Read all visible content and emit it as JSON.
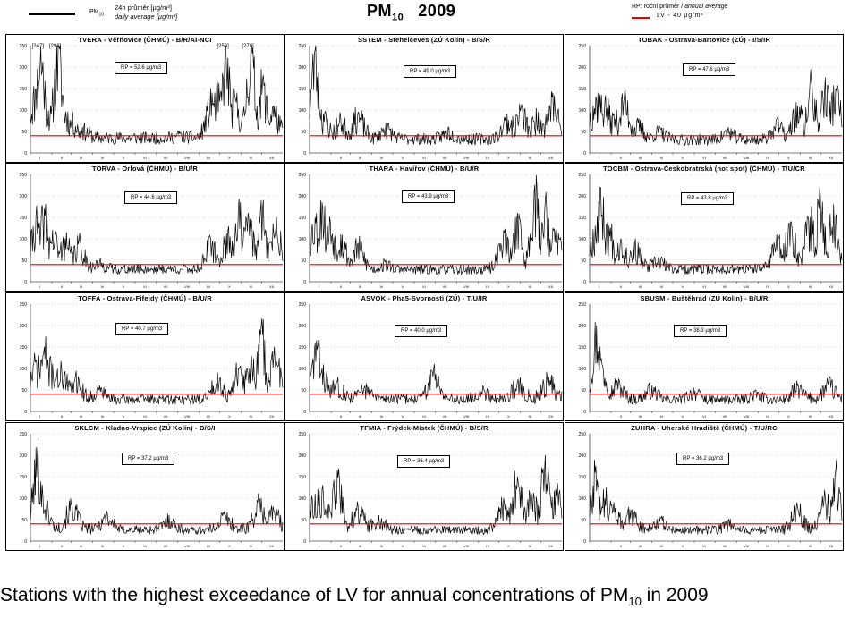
{
  "header": {
    "left_legend_symbol": "PM",
    "left_legend_symbol_sub": "10",
    "left_legend_line1": "24h průměr [µg/m³]",
    "left_legend_line2": "daily average [µg/m³]",
    "title_main": "PM",
    "title_sub": "10",
    "title_year": "2009",
    "right_legend_cs": "RP: roční průměr / ",
    "right_legend_en": "annual average",
    "right_legend_lv": "LV - 40 µg/m³"
  },
  "caption": {
    "text": "Stations with the highest exceedance of LV for annual concentrations of PM",
    "sub": "10",
    "tail": " in 2009"
  },
  "colors": {
    "series": "#000000",
    "limit": "#e00000",
    "grid": "#999999"
  },
  "chart_data": [
    {
      "type": "line",
      "title": "TVERA - Věřňovice (ČHMÚ) - B/R/AI-NCI",
      "annual_average_label": "RP = 52.6 µg/m3",
      "limit_value": 40,
      "ylim": [
        0,
        250
      ],
      "yticks": [
        0,
        50,
        100,
        150,
        200,
        250
      ],
      "x_tick_labels": [
        "I",
        "II",
        "III",
        "IV",
        "V",
        "VI",
        "VII",
        "VIII",
        "IX",
        "X",
        "XI",
        "XII"
      ],
      "annotations": [
        "[247]",
        "[298]",
        "[250]",
        "[270]"
      ],
      "annotation_days": [
        15,
        40,
        282,
        318
      ],
      "seed": 11,
      "peaks": [
        [
          8,
          150
        ],
        [
          15,
          247
        ],
        [
          22,
          120
        ],
        [
          30,
          90
        ],
        [
          40,
          250
        ],
        [
          48,
          110
        ],
        [
          60,
          80
        ],
        [
          75,
          60
        ],
        [
          150,
          45
        ],
        [
          215,
          50
        ],
        [
          262,
          140
        ],
        [
          270,
          160
        ],
        [
          282,
          250
        ],
        [
          295,
          130
        ],
        [
          318,
          250
        ],
        [
          335,
          170
        ],
        [
          350,
          110
        ]
      ],
      "base": 45
    },
    {
      "type": "line",
      "title": "SSTEM - Stehelčeves (ZÚ Kolín) - B/S/R",
      "annual_average_label": "RP = 49.0 µg/m3",
      "limit_value": 40,
      "ylim": [
        0,
        250
      ],
      "yticks": [
        0,
        50,
        100,
        150,
        200,
        250
      ],
      "x_tick_labels": [
        "I",
        "II",
        "III",
        "IV",
        "V",
        "VI",
        "VII",
        "VIII",
        "IX",
        "X",
        "XI",
        "XII"
      ],
      "seed": 23,
      "peaks": [
        [
          8,
          240
        ],
        [
          20,
          90
        ],
        [
          45,
          80
        ],
        [
          70,
          95
        ],
        [
          110,
          70
        ],
        [
          200,
          60
        ],
        [
          285,
          90
        ],
        [
          305,
          105
        ],
        [
          330,
          95
        ],
        [
          350,
          130
        ]
      ],
      "base": 42
    },
    {
      "type": "line",
      "title": "TOBAK - Ostrava-Bartovice (ZÚ) - I/S/IR",
      "annual_average_label": "RP = 47.6 µg/m3",
      "limit_value": 40,
      "ylim": [
        0,
        250
      ],
      "yticks": [
        0,
        50,
        100,
        150,
        200,
        250
      ],
      "x_tick_labels": [
        "I",
        "II",
        "III",
        "IV",
        "V",
        "VI",
        "VII",
        "VIII",
        "IX",
        "X",
        "XI",
        "XII"
      ],
      "seed": 37,
      "peaks": [
        [
          5,
          110
        ],
        [
          12,
          140
        ],
        [
          22,
          120
        ],
        [
          35,
          90
        ],
        [
          50,
          130
        ],
        [
          70,
          70
        ],
        [
          100,
          60
        ],
        [
          200,
          60
        ],
        [
          270,
          80
        ],
        [
          300,
          110
        ],
        [
          320,
          165
        ],
        [
          340,
          175
        ],
        [
          355,
          150
        ]
      ],
      "base": 40
    },
    {
      "type": "line",
      "title": "TORVA - Orlová (ČHMÚ) - B/U/R",
      "annual_average_label": "RP = 44.6 µg/m3",
      "limit_value": 40,
      "ylim": [
        0,
        250
      ],
      "yticks": [
        0,
        50,
        100,
        150,
        200,
        250
      ],
      "x_tick_labels": [
        "I",
        "II",
        "III",
        "IV",
        "V",
        "VI",
        "VII",
        "VIII",
        "IX",
        "X",
        "XI",
        "XII"
      ],
      "seed": 41,
      "peaks": [
        [
          8,
          155
        ],
        [
          20,
          170
        ],
        [
          32,
          120
        ],
        [
          50,
          100
        ],
        [
          70,
          95
        ],
        [
          100,
          50
        ],
        [
          260,
          100
        ],
        [
          285,
          120
        ],
        [
          300,
          170
        ],
        [
          315,
          150
        ],
        [
          335,
          170
        ],
        [
          355,
          150
        ]
      ],
      "base": 38
    },
    {
      "type": "line",
      "title": "THARA - Havířov (ČHMÚ) - B/U/R",
      "annual_average_label": "RP = 43.9 µg/m3",
      "limit_value": 40,
      "ylim": [
        0,
        250
      ],
      "yticks": [
        0,
        50,
        100,
        150,
        200,
        250
      ],
      "x_tick_labels": [
        "I",
        "II",
        "III",
        "IV",
        "V",
        "VI",
        "VII",
        "VIII",
        "IX",
        "X",
        "XI",
        "XII"
      ],
      "seed": 53,
      "peaks": [
        [
          8,
          150
        ],
        [
          18,
          185
        ],
        [
          30,
          140
        ],
        [
          45,
          110
        ],
        [
          70,
          90
        ],
        [
          110,
          50
        ],
        [
          280,
          120
        ],
        [
          300,
          160
        ],
        [
          325,
          225
        ],
        [
          340,
          190
        ],
        [
          355,
          120
        ]
      ],
      "base": 36
    },
    {
      "type": "line",
      "title": "TOCBM - Ostrava-Českobratrská (hot spot) (ČHMÚ) - T/U/CR",
      "annual_average_label": "RP = 43.8 µg/m3",
      "limit_value": 40,
      "ylim": [
        0,
        250
      ],
      "yticks": [
        0,
        50,
        100,
        150,
        200,
        250
      ],
      "x_tick_labels": [
        "I",
        "II",
        "III",
        "IV",
        "V",
        "VI",
        "VII",
        "VIII",
        "IX",
        "X",
        "XI",
        "XII"
      ],
      "seed": 67,
      "peaks": [
        [
          8,
          130
        ],
        [
          16,
          220
        ],
        [
          28,
          130
        ],
        [
          45,
          100
        ],
        [
          65,
          85
        ],
        [
          100,
          60
        ],
        [
          270,
          110
        ],
        [
          290,
          140
        ],
        [
          318,
          150
        ],
        [
          333,
          200
        ],
        [
          352,
          180
        ]
      ],
      "base": 38
    },
    {
      "type": "line",
      "title": "TOFFA - Ostrava-Fifejdy (ČHMÚ) - B/U/R",
      "annual_average_label": "RP = 40.7 µg/m3",
      "limit_value": 40,
      "ylim": [
        0,
        250
      ],
      "yticks": [
        0,
        50,
        100,
        150,
        200,
        250
      ],
      "x_tick_labels": [
        "I",
        "II",
        "III",
        "IV",
        "V",
        "VI",
        "VII",
        "VIII",
        "IX",
        "X",
        "XI",
        "XII"
      ],
      "seed": 71,
      "peaks": [
        [
          8,
          120
        ],
        [
          20,
          150
        ],
        [
          30,
          110
        ],
        [
          45,
          100
        ],
        [
          65,
          85
        ],
        [
          100,
          60
        ],
        [
          270,
          90
        ],
        [
          300,
          100
        ],
        [
          318,
          120
        ],
        [
          333,
          200
        ],
        [
          352,
          150
        ]
      ],
      "base": 36
    },
    {
      "type": "line",
      "title": "ASVOK - Pha5-Svornosti (ZÚ) - T/U/IR",
      "annual_average_label": "RP = 40.0 µg/m3",
      "limit_value": 40,
      "ylim": [
        0,
        250
      ],
      "yticks": [
        0,
        50,
        100,
        150,
        200,
        250
      ],
      "x_tick_labels": [
        "I",
        "II",
        "III",
        "IV",
        "V",
        "VI",
        "VII",
        "VIII",
        "IX",
        "X",
        "XI",
        "XII"
      ],
      "seed": 83,
      "peaks": [
        [
          10,
          165
        ],
        [
          18,
          100
        ],
        [
          40,
          70
        ],
        [
          80,
          60
        ],
        [
          180,
          110
        ],
        [
          250,
          60
        ],
        [
          300,
          70
        ],
        [
          345,
          80
        ]
      ],
      "base": 38
    },
    {
      "type": "line",
      "title": "SBUSM - Buštěhrad (ZÚ Kolín) - B/U/R",
      "annual_average_label": "RP = 38.3 µg/m3",
      "limit_value": 40,
      "ylim": [
        0,
        250
      ],
      "yticks": [
        0,
        50,
        100,
        150,
        200,
        250
      ],
      "x_tick_labels": [
        "I",
        "II",
        "III",
        "IV",
        "V",
        "VI",
        "VII",
        "VIII",
        "IX",
        "X",
        "XI",
        "XII"
      ],
      "seed": 97,
      "peaks": [
        [
          10,
          200
        ],
        [
          18,
          110
        ],
        [
          40,
          70
        ],
        [
          90,
          60
        ],
        [
          150,
          55
        ],
        [
          240,
          50
        ],
        [
          300,
          60
        ],
        [
          345,
          70
        ]
      ],
      "base": 35
    },
    {
      "type": "line",
      "title": "SKLCM - Kladno-Vrapice (ZÚ Kolín) - B/S/I",
      "annual_average_label": "RP = 37.2 µg/m3",
      "limit_value": 40,
      "ylim": [
        0,
        250
      ],
      "yticks": [
        0,
        50,
        100,
        150,
        200,
        250
      ],
      "x_tick_labels": [
        "I",
        "II",
        "III",
        "IV",
        "V",
        "VI",
        "VII",
        "VIII",
        "IX",
        "X",
        "XI",
        "XII"
      ],
      "seed": 101,
      "peaks": [
        [
          10,
          205
        ],
        [
          18,
          105
        ],
        [
          60,
          90
        ],
        [
          110,
          70
        ],
        [
          200,
          60
        ],
        [
          280,
          70
        ],
        [
          330,
          95
        ],
        [
          350,
          80
        ]
      ],
      "base": 34
    },
    {
      "type": "line",
      "title": "TFMIA - Frýdek-Místek (ČHMÚ) - B/S/R",
      "annual_average_label": "RP = 36.4 µg/m3",
      "limit_value": 40,
      "ylim": [
        0,
        250
      ],
      "yticks": [
        0,
        50,
        100,
        150,
        200,
        250
      ],
      "x_tick_labels": [
        "I",
        "II",
        "III",
        "IV",
        "V",
        "VI",
        "VII",
        "VIII",
        "IX",
        "X",
        "XI",
        "XII"
      ],
      "seed": 113,
      "peaks": [
        [
          8,
          110
        ],
        [
          18,
          120
        ],
        [
          40,
          165
        ],
        [
          70,
          80
        ],
        [
          100,
          60
        ],
        [
          280,
          100
        ],
        [
          300,
          150
        ],
        [
          320,
          110
        ],
        [
          340,
          200
        ],
        [
          355,
          120
        ]
      ],
      "base": 33
    },
    {
      "type": "line",
      "title": "ZUHRA - Uherské Hradiště (ČHMÚ) - T/U/RC",
      "annual_average_label": "RP = 36.2 µg/m3",
      "limit_value": 40,
      "ylim": [
        0,
        250
      ],
      "yticks": [
        0,
        50,
        100,
        150,
        200,
        250
      ],
      "x_tick_labels": [
        "I",
        "II",
        "III",
        "IV",
        "V",
        "VI",
        "VII",
        "VIII",
        "IX",
        "X",
        "XI",
        "XII"
      ],
      "seed": 127,
      "peaks": [
        [
          8,
          160
        ],
        [
          20,
          120
        ],
        [
          35,
          90
        ],
        [
          60,
          70
        ],
        [
          100,
          60
        ],
        [
          200,
          50
        ],
        [
          300,
          80
        ],
        [
          340,
          100
        ],
        [
          355,
          165
        ]
      ],
      "base": 33
    }
  ]
}
